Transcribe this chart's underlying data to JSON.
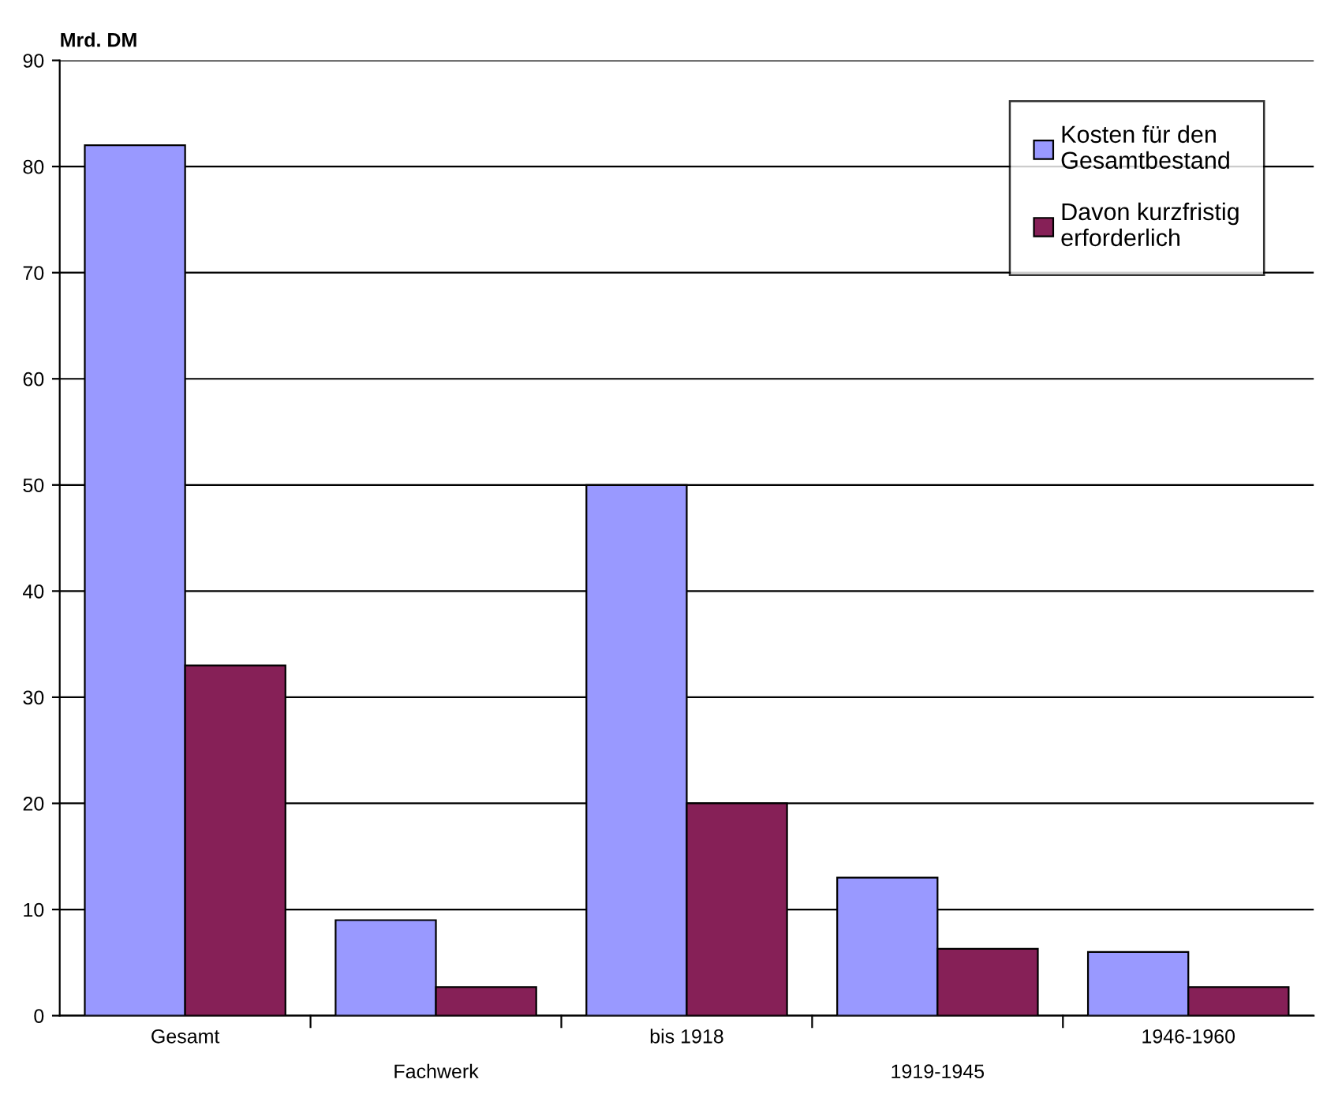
{
  "chart_data": {
    "type": "bar",
    "ylabel": "Mrd. DM",
    "categories": [
      "Gesamt",
      "Fachwerk",
      "bis 1918",
      "1919-1945",
      "1946-1960"
    ],
    "series": [
      {
        "name": "Kosten für den Gesamtbestand",
        "color": "#9999ff",
        "values": [
          82,
          9,
          50,
          13,
          6
        ]
      },
      {
        "name": "Davon kurzfristig erforderlich",
        "color": "#862057",
        "values": [
          33,
          2.7,
          20,
          6.3,
          2.7
        ]
      }
    ],
    "ylim": [
      0,
      90
    ],
    "yticks": [
      0,
      10,
      20,
      30,
      40,
      50,
      60,
      70,
      80,
      90
    ],
    "grid": "y",
    "legend": "top right"
  }
}
